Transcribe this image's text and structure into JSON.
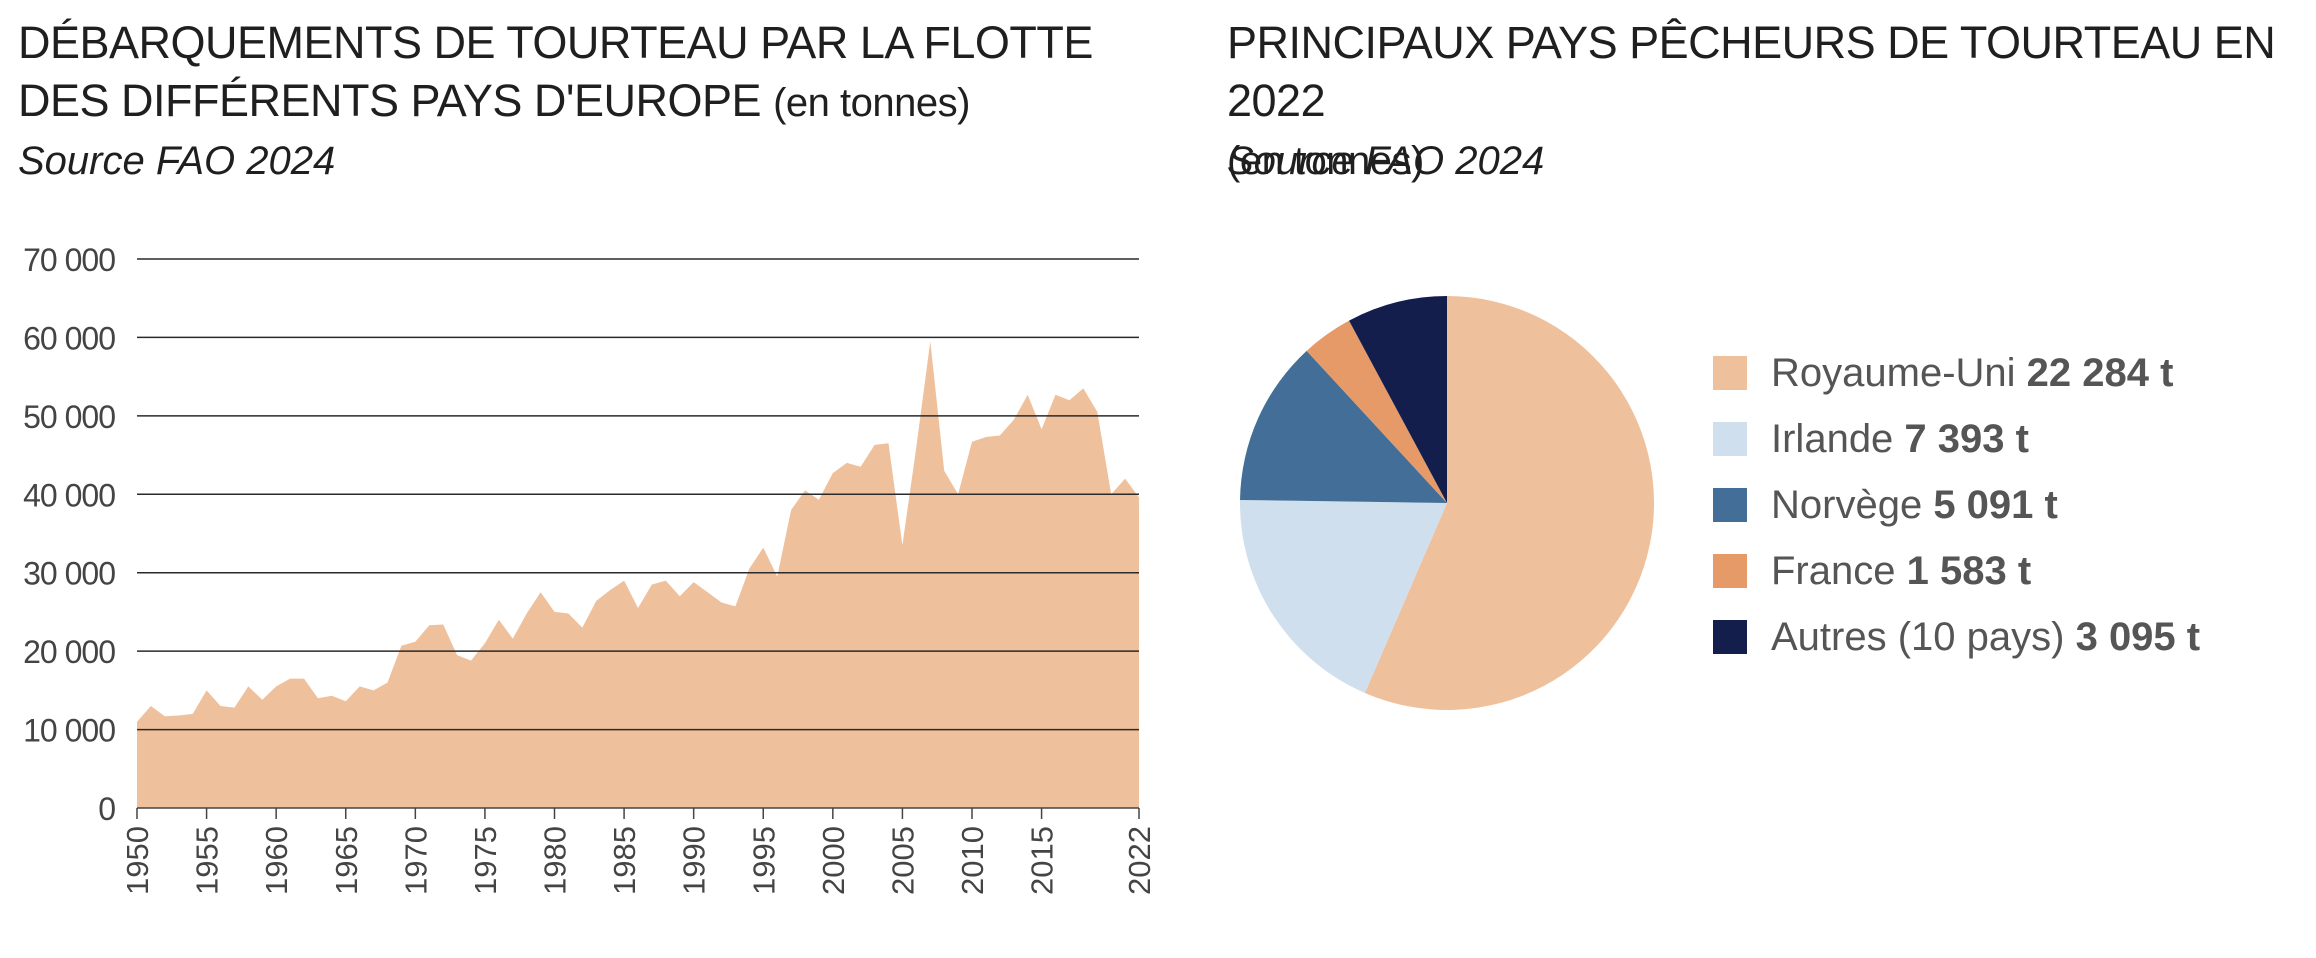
{
  "charts": {
    "area": {
      "title_main": "DÉBARQUEMENTS DE TOURTEAU PAR LA FLOTTE DES DIFFÉRENTS PAYS D'EUROPE",
      "title_unit": "(en tonnes)",
      "source": "Source FAO 2024"
    },
    "pie": {
      "title_main": "PRINCIPAUX PAYS PÊCHEURS DE TOURTEAU EN 2022",
      "title_unit": "(en tonnes)",
      "source": "Source FAO 2024"
    }
  },
  "chart_data": [
    {
      "type": "area",
      "title": "DÉBARQUEMENTS DE TOURTEAU PAR LA FLOTTE DES DIFFÉRENTS PAYS D'EUROPE (en tonnes)",
      "subtitle": "Source FAO 2024",
      "xlabel": "",
      "ylabel": "",
      "ylim": [
        0,
        70000
      ],
      "xlim": [
        1950,
        2022
      ],
      "yticks": [
        0,
        10000,
        20000,
        30000,
        40000,
        50000,
        60000,
        70000
      ],
      "ytick_labels": [
        "0",
        "10 000",
        "20 000",
        "30 000",
        "40 000",
        "50 000",
        "60 000",
        "70 000"
      ],
      "xticks": [
        1950,
        1955,
        1960,
        1965,
        1970,
        1975,
        1980,
        1985,
        1990,
        1995,
        2000,
        2005,
        2010,
        2015,
        2022
      ],
      "xtick_labels": [
        "1950",
        "1955",
        "1960",
        "1965",
        "1970",
        "1975",
        "1980",
        "1985",
        "1990",
        "1995",
        "2000",
        "2005",
        "2010",
        "2015",
        "2022"
      ],
      "grid": "horizontal",
      "color": "#efc09c",
      "x": [
        1950,
        1951,
        1952,
        1953,
        1954,
        1955,
        1956,
        1957,
        1958,
        1959,
        1960,
        1961,
        1962,
        1963,
        1964,
        1965,
        1966,
        1967,
        1968,
        1969,
        1970,
        1971,
        1972,
        1973,
        1974,
        1975,
        1976,
        1977,
        1978,
        1979,
        1980,
        1981,
        1982,
        1983,
        1984,
        1985,
        1986,
        1987,
        1988,
        1989,
        1990,
        1991,
        1992,
        1993,
        1994,
        1995,
        1996,
        1997,
        1998,
        1999,
        2000,
        2001,
        2002,
        2003,
        2004,
        2005,
        2006,
        2007,
        2008,
        2009,
        2010,
        2011,
        2012,
        2013,
        2014,
        2015,
        2016,
        2017,
        2018,
        2019,
        2020,
        2021,
        2022
      ],
      "values": [
        11000,
        13000,
        11700,
        11800,
        12000,
        15000,
        13000,
        12800,
        15500,
        13800,
        15500,
        16500,
        16500,
        14000,
        14300,
        13600,
        15500,
        15000,
        16000,
        20700,
        21200,
        23300,
        23400,
        19500,
        18800,
        21000,
        24000,
        21600,
        24800,
        27500,
        25000,
        24800,
        23000,
        26400,
        27800,
        29000,
        25500,
        28500,
        29000,
        27000,
        28800,
        27500,
        26200,
        25700,
        30500,
        33200,
        29500,
        38000,
        40500,
        39300,
        42700,
        44000,
        43500,
        46300,
        46500,
        33500,
        46000,
        59500,
        43000,
        40000,
        46700,
        47300,
        47500,
        49500,
        52700,
        48300,
        52700,
        52000,
        53500,
        50500,
        40000,
        42000,
        39600
      ]
    },
    {
      "type": "pie",
      "title": "PRINCIPAUX PAYS PÊCHEURS DE TOURTEAU EN 2022 (en tonnes)",
      "subtitle": "Source FAO 2024",
      "legend_position": "right",
      "slices": [
        {
          "name": "Royaume-Uni",
          "value": 22284,
          "label": "22 284 t",
          "color": "#efc09c"
        },
        {
          "name": "Irlande",
          "value": 7393,
          "label": "7 393 t",
          "color": "#d0dfed"
        },
        {
          "name": "Norvège",
          "value": 5091,
          "label": "5 091 t",
          "color": "#426e98"
        },
        {
          "name": "France",
          "value": 1583,
          "label": "1 583 t",
          "color": "#e59a68"
        },
        {
          "name": "Autres (10 pays)",
          "value": 3095,
          "label": "3 095 t",
          "color": "#141e4d"
        }
      ]
    }
  ]
}
